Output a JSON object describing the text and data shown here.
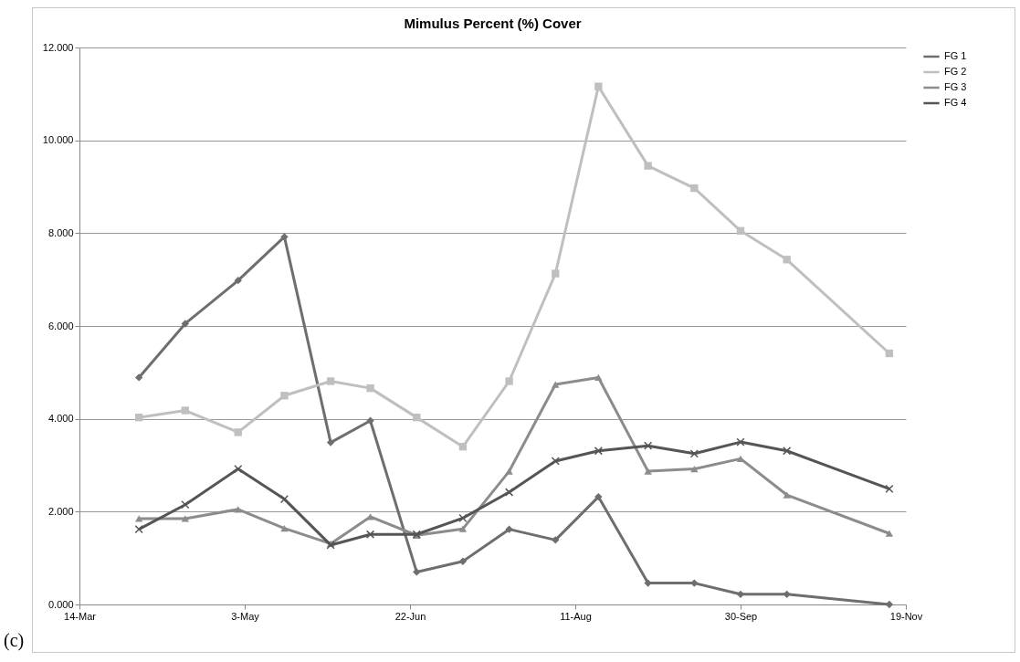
{
  "chart_data": {
    "type": "line",
    "title": "Mimulus Percent (%) Cover",
    "annotations": [
      "(c)"
    ],
    "x": [
      "--04-01",
      "--04-15",
      "--05-01",
      "--05-15",
      "--05-29",
      "--06-10",
      "--06-24",
      "--07-08",
      "--07-22",
      "--08-05",
      "--08-18",
      "--09-02",
      "--09-16",
      "--09-30",
      "--10-14",
      "--11-14"
    ],
    "series": [
      {
        "name": "FG 1",
        "color": "#6e6e6e",
        "marker": "diamond",
        "values": [
          4.89,
          6.05,
          6.98,
          7.92,
          3.49,
          3.96,
          0.7,
          0.93,
          1.62,
          1.39,
          2.32,
          0.46,
          0.46,
          0.22,
          0.22,
          0.0
        ]
      },
      {
        "name": "FG 2",
        "color": "#bfbfbf",
        "marker": "square",
        "values": [
          4.03,
          4.18,
          3.71,
          4.5,
          4.81,
          4.66,
          4.03,
          3.4,
          4.81,
          7.13,
          11.16,
          9.45,
          8.97,
          8.05,
          7.43,
          5.41
        ]
      },
      {
        "name": "FG 3",
        "color": "#8c8c8c",
        "marker": "triangle",
        "values": [
          1.85,
          1.85,
          2.05,
          1.64,
          1.31,
          1.89,
          1.49,
          1.63,
          2.87,
          4.74,
          4.89,
          2.87,
          2.92,
          3.14,
          2.36,
          1.53
        ]
      },
      {
        "name": "FG 4",
        "color": "#555555",
        "marker": "cross",
        "values": [
          1.62,
          2.15,
          2.92,
          2.27,
          1.28,
          1.51,
          1.51,
          1.86,
          2.42,
          3.09,
          3.31,
          3.42,
          3.25,
          3.5,
          3.31,
          2.49
        ]
      }
    ],
    "xlim": [
      "--03-14",
      "--11-19"
    ],
    "xticks": [
      {
        "value": "--03-14",
        "label": "14-Mar"
      },
      {
        "value": "--05-03",
        "label": "3-May"
      },
      {
        "value": "--06-22",
        "label": "22-Jun"
      },
      {
        "value": "--08-11",
        "label": "11-Aug"
      },
      {
        "value": "--09-30",
        "label": "30-Sep"
      },
      {
        "value": "--11-19",
        "label": "19-Nov"
      }
    ],
    "ylim": [
      0,
      12
    ],
    "yticks": [
      {
        "value": 0,
        "label": "0.000"
      },
      {
        "value": 2,
        "label": "2.000"
      },
      {
        "value": 4,
        "label": "4.000"
      },
      {
        "value": 6,
        "label": "6.000"
      },
      {
        "value": 8,
        "label": "8.000"
      },
      {
        "value": 10,
        "label": "10.000"
      },
      {
        "value": 12,
        "label": "12.000"
      }
    ],
    "grid": "y",
    "legend": "right",
    "line_style": "solid"
  }
}
